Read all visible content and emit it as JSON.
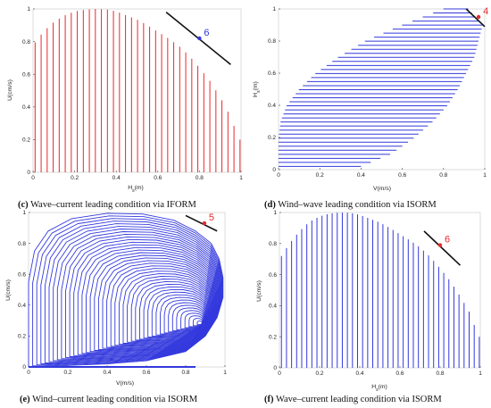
{
  "colors": {
    "red": "#e8282b",
    "blue": "#3339dd",
    "black": "#111111",
    "frame": "#d6d6d6"
  },
  "chart_data": [
    {
      "id": "c",
      "type": "line",
      "style": "vertical-lines",
      "color": "red",
      "xlabel": "H_s(m)",
      "ylabel": "U(cm/s)",
      "xlim": [
        0,
        1
      ],
      "ylim": [
        0,
        1
      ],
      "xticks": [
        "0",
        "0.2",
        "0.4",
        "0.6",
        "0.8",
        "1"
      ],
      "yticks": [
        "0",
        "0.2",
        "0.4",
        "0.6",
        "0.8",
        "1"
      ],
      "envelope": {
        "x": [
          0,
          0.05,
          0.1,
          0.15,
          0.2,
          0.25,
          0.3,
          0.35,
          0.4,
          0.45,
          0.5,
          0.55,
          0.6,
          0.65,
          0.7,
          0.75,
          0.8,
          0.85,
          0.9,
          0.95,
          0.99
        ],
        "y": [
          0.78,
          0.86,
          0.92,
          0.96,
          0.985,
          0.995,
          1.0,
          0.998,
          0.985,
          0.96,
          0.935,
          0.9,
          0.86,
          0.82,
          0.775,
          0.715,
          0.64,
          0.56,
          0.46,
          0.34,
          0.2
        ]
      },
      "line_count": 35,
      "line_span": [
        0.01,
        0.995
      ],
      "tangent": {
        "x": [
          0.64,
          0.95
        ],
        "y": [
          0.98,
          0.66
        ]
      },
      "marker": {
        "x": 0.8,
        "y": 0.82,
        "label": "6",
        "label_color": "blue"
      },
      "caption_prefix": "(c)",
      "caption": "Wave–current leading condition via IFORM"
    },
    {
      "id": "d",
      "type": "line",
      "style": "horizontal-lines",
      "color": "blue",
      "xlabel": "V(m/s)",
      "ylabel": "H_s(m)",
      "xlim": [
        0,
        1
      ],
      "ylim": [
        0,
        1
      ],
      "xticks": [
        "0",
        "0.2",
        "0.4",
        "0.6",
        "0.8",
        "1"
      ],
      "yticks": [
        "0",
        "0.2",
        "0.4",
        "0.6",
        "0.8",
        "1"
      ],
      "left_envelope": {
        "y": [
          0.02,
          0.1,
          0.2,
          0.3,
          0.4,
          0.5,
          0.6,
          0.7,
          0.8,
          0.9,
          1.0
        ],
        "x": [
          0.0,
          0.0,
          0.0,
          0.01,
          0.04,
          0.1,
          0.18,
          0.29,
          0.42,
          0.6,
          0.8
        ]
      },
      "right_envelope": {
        "y": [
          0.02,
          0.1,
          0.2,
          0.3,
          0.4,
          0.5,
          0.6,
          0.7,
          0.8,
          0.9,
          1.0
        ],
        "x": [
          0.4,
          0.55,
          0.66,
          0.75,
          0.82,
          0.87,
          0.91,
          0.95,
          0.97,
          0.99,
          0.92
        ]
      },
      "line_count": 40,
      "line_span": [
        0.02,
        1.0
      ],
      "tangent": {
        "x": [
          0.91,
          1.0
        ],
        "y": [
          1.0,
          0.89
        ]
      },
      "marker": {
        "x": 0.97,
        "y": 0.95,
        "label": "4",
        "label_color": "red"
      },
      "caption_prefix": "(d)",
      "caption": "Wind–wave leading condition via ISORM"
    },
    {
      "id": "e",
      "type": "line",
      "style": "nested-contours",
      "color": "blue",
      "xlabel": "V(m/s)",
      "ylabel": "U(cm/s)",
      "xlim": [
        0,
        1
      ],
      "ylim": [
        0,
        1
      ],
      "xticks": [
        "0",
        "0.2",
        "0.4",
        "0.6",
        "0.8",
        "1"
      ],
      "yticks": [
        "0",
        "0.2",
        "0.4",
        "0.6",
        "0.8",
        "1"
      ],
      "outer_contour": {
        "x": [
          0.0,
          0.0,
          0.03,
          0.1,
          0.22,
          0.4,
          0.58,
          0.74,
          0.85,
          0.93,
          0.97,
          0.99,
          0.99,
          0.96,
          0.9,
          0.8,
          0.6,
          0.4,
          0.2,
          0.05,
          0.0
        ],
        "y": [
          0.0,
          0.55,
          0.75,
          0.88,
          0.96,
          0.995,
          0.99,
          0.95,
          0.88,
          0.8,
          0.7,
          0.58,
          0.45,
          0.32,
          0.2,
          0.1,
          0.04,
          0.02,
          0.01,
          0.0,
          0.0
        ]
      },
      "inner_center": {
        "x": 0.88,
        "y": 0.28
      },
      "contour_count": 42,
      "tangent": {
        "x": [
          0.8,
          0.96
        ],
        "y": [
          0.98,
          0.88
        ]
      },
      "marker": {
        "x": 0.895,
        "y": 0.93,
        "label": "5",
        "label_color": "red"
      },
      "caption_prefix": "(e)",
      "caption": "Wind–current leading condition via ISORM"
    },
    {
      "id": "f",
      "type": "line",
      "style": "vertical-lines",
      "color": "blue",
      "xlabel": "H_s(m)",
      "ylabel": "U(cm/s)",
      "xlim": [
        0,
        1
      ],
      "ylim": [
        0,
        1
      ],
      "xticks": [
        "0",
        "0.2",
        "0.4",
        "0.6",
        "0.8",
        "1"
      ],
      "yticks": [
        "0",
        "0.2",
        "0.4",
        "0.6",
        "0.8",
        "1"
      ],
      "envelope": {
        "x": [
          0,
          0.05,
          0.1,
          0.15,
          0.2,
          0.25,
          0.3,
          0.35,
          0.4,
          0.45,
          0.5,
          0.55,
          0.6,
          0.65,
          0.7,
          0.75,
          0.8,
          0.85,
          0.9,
          0.95,
          0.99
        ],
        "y": [
          0.7,
          0.8,
          0.88,
          0.94,
          0.975,
          0.993,
          1.0,
          0.998,
          0.985,
          0.96,
          0.935,
          0.9,
          0.86,
          0.82,
          0.775,
          0.715,
          0.64,
          0.56,
          0.46,
          0.35,
          0.2
        ]
      },
      "line_count": 40,
      "line_span": [
        0.01,
        0.995
      ],
      "tangent": {
        "x": [
          0.72,
          0.9
        ],
        "y": [
          0.88,
          0.66
        ]
      },
      "marker": {
        "x": 0.8,
        "y": 0.79,
        "label": "6",
        "label_color": "red"
      },
      "caption_prefix": "(f)",
      "caption": "Wave–current leading condition via ISORM"
    }
  ]
}
